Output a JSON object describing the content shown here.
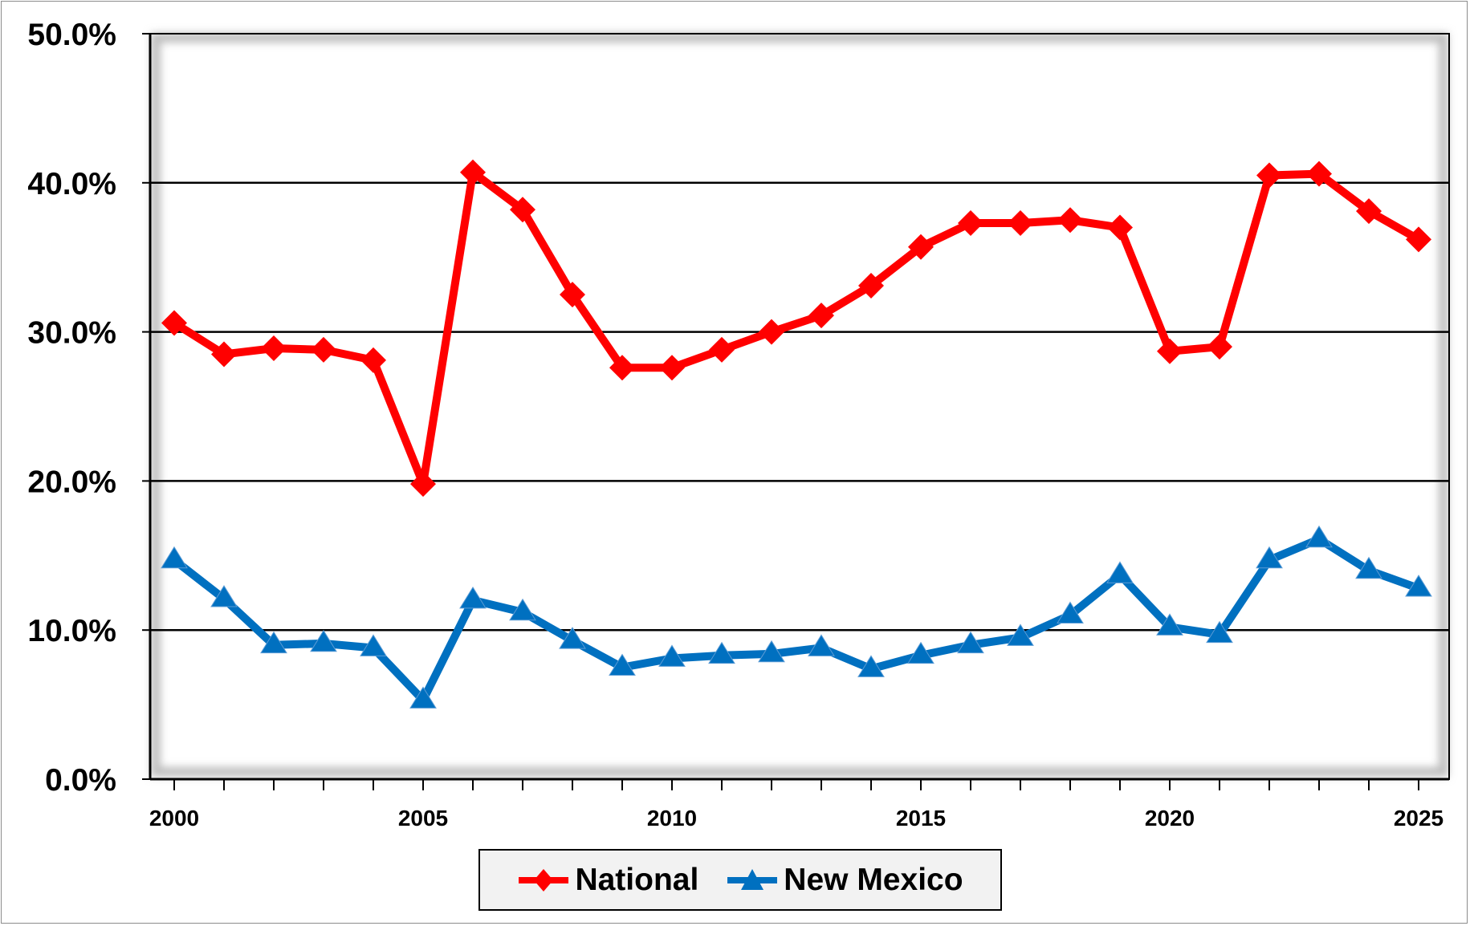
{
  "chart_data": {
    "type": "line",
    "title": "",
    "xlabel": "",
    "ylabel": "",
    "ylim": [
      0,
      50
    ],
    "yticks": [
      0,
      10,
      20,
      30,
      40,
      50
    ],
    "ytick_labels": [
      "0.0%",
      "10.0%",
      "20.0%",
      "30.0%",
      "40.0%",
      "50.0%"
    ],
    "xlim": [
      2000,
      2025
    ],
    "xticks": [
      2000,
      2005,
      2010,
      2015,
      2020,
      2025
    ],
    "xtick_labels": [
      "2000",
      "2005",
      "2010",
      "2015",
      "2020",
      "2025"
    ],
    "grid": "horizontal",
    "legend_position": "bottom",
    "x": [
      2000,
      2001,
      2002,
      2003,
      2004,
      2005,
      2006,
      2007,
      2008,
      2009,
      2010,
      2011,
      2012,
      2013,
      2014,
      2015,
      2016,
      2017,
      2018,
      2019,
      2020,
      2021,
      2022,
      2023,
      2024,
      2025
    ],
    "series": [
      {
        "name": "National",
        "color": "#ff0000",
        "marker": "diamond",
        "values": [
          30.6,
          28.5,
          28.9,
          28.8,
          28.1,
          19.8,
          40.7,
          38.2,
          32.5,
          27.6,
          27.6,
          28.8,
          30.0,
          31.1,
          33.1,
          35.7,
          37.3,
          37.3,
          37.5,
          37.0,
          28.7,
          29.0,
          40.5,
          40.6,
          38.1,
          36.2
        ]
      },
      {
        "name": "New Mexico",
        "color": "#0070c0",
        "marker": "triangle",
        "values": [
          14.7,
          12.1,
          9.0,
          9.1,
          8.8,
          5.3,
          12.0,
          11.2,
          9.3,
          7.5,
          8.1,
          8.3,
          8.4,
          8.8,
          7.4,
          8.3,
          9.0,
          9.5,
          11.0,
          13.7,
          10.2,
          9.7,
          14.7,
          16.1,
          14.0,
          12.8
        ]
      }
    ]
  }
}
